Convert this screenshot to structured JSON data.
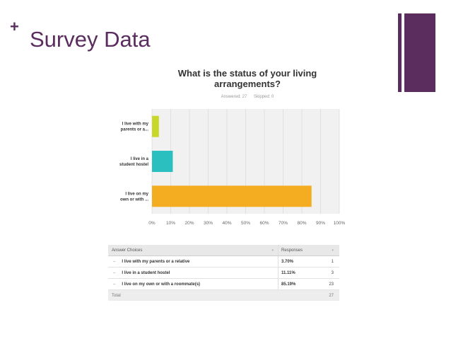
{
  "slide": {
    "plus": "+",
    "title": "Survey Data"
  },
  "colors": {
    "accent": "#5a2d5e",
    "bar_colors": [
      "#c9d62a",
      "#2bbfbf",
      "#f4ad20"
    ]
  },
  "chart_data": {
    "type": "bar",
    "orientation": "horizontal",
    "title": "What is the status of your living arrangements?",
    "title_lines": [
      "What is the status of your living",
      "arrangements?"
    ],
    "answered": "Answered: 27",
    "skipped": "Skipped: 0",
    "categories": [
      [
        "I live with my",
        "parents or a..."
      ],
      [
        "I live in a",
        "student hostel"
      ],
      [
        "I live on my",
        "own or with ..."
      ]
    ],
    "values": [
      3.7,
      11.11,
      85.19
    ],
    "xlim": [
      0,
      100
    ],
    "ticks": [
      0,
      10,
      20,
      30,
      40,
      50,
      60,
      70,
      80,
      90,
      100
    ],
    "tick_labels": [
      "0%",
      "10%",
      "20%",
      "30%",
      "40%",
      "50%",
      "60%",
      "70%",
      "80%",
      "90%",
      "100%"
    ],
    "grid": true
  },
  "table": {
    "headers": [
      "Answer Choices",
      "Responses"
    ],
    "header_caret": "▾",
    "row_marker": "–",
    "rows": [
      {
        "choice": "I live with my parents or a relative",
        "percent": "3.70%",
        "count": "1"
      },
      {
        "choice": "I live in a student hostel",
        "percent": "11.11%",
        "count": "3"
      },
      {
        "choice": "I live on my own or with a roommate(s)",
        "percent": "85.19%",
        "count": "23"
      }
    ],
    "footer": {
      "label": "Total",
      "count": "27"
    }
  }
}
